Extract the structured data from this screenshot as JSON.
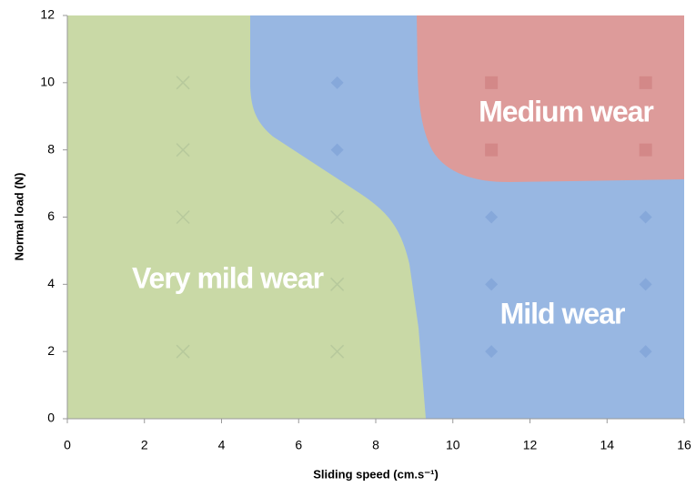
{
  "chart_data": {
    "type": "scatter",
    "xlabel": "Sliding speed (cm.s⁻¹)",
    "ylabel": "Normal load  (N)",
    "xlim": [
      0,
      16
    ],
    "xticks": [
      0,
      2,
      4,
      6,
      8,
      10,
      12,
      14,
      16
    ],
    "ylim": [
      0,
      12
    ],
    "yticks": [
      0,
      2,
      4,
      6,
      8,
      10,
      12
    ],
    "series": [
      {
        "marker": "cross",
        "color": "#b7c99c",
        "x": [
          3,
          3,
          3,
          3,
          7,
          7,
          7
        ],
        "y": [
          2,
          6,
          8,
          10,
          2,
          4,
          6
        ]
      },
      {
        "marker": "diamond",
        "color": "#86a8da",
        "x": [
          7,
          7,
          11,
          11,
          11,
          15,
          15,
          15
        ],
        "y": [
          8,
          10,
          2,
          4,
          6,
          2,
          4,
          6
        ]
      },
      {
        "marker": "square",
        "color": "#d38888",
        "x": [
          11,
          11,
          15,
          15
        ],
        "y": [
          8,
          10,
          8,
          10
        ]
      }
    ],
    "annotations": [
      "Very mild wear",
      "Mild wear",
      "Medium wear"
    ]
  }
}
